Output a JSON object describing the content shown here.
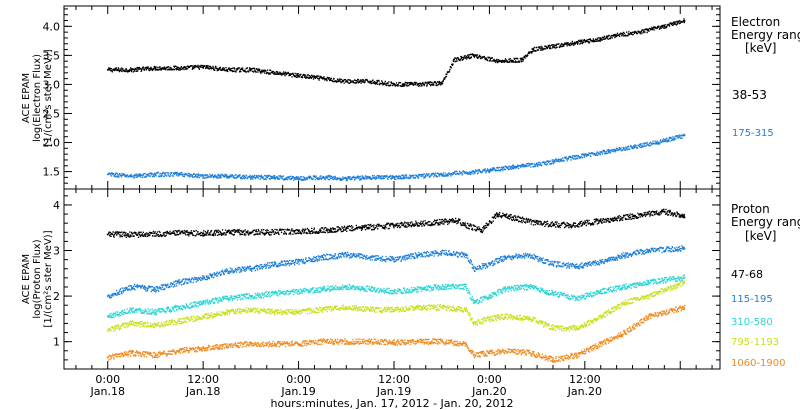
{
  "chart_data": [
    {
      "type": "scatter",
      "panel": "electron",
      "ylabel_lines": [
        "ACE EPAM",
        "log(Electron Flux)",
        "[1/(cm²s ster MeV)]"
      ],
      "ylim": [
        1.2,
        4.35
      ],
      "yticks": [
        1.5,
        2.0,
        2.5,
        3.0,
        3.5,
        4.0
      ],
      "ytick_labels": [
        "1.5",
        "2.0",
        "2.5",
        "3.0",
        "3.5",
        "4.0"
      ],
      "legend_title": [
        "Electron",
        "Energy range",
        "[keV]"
      ],
      "series": [
        {
          "name": "38-53",
          "color": "#000000",
          "x": [
            0,
            3,
            6,
            9,
            12,
            15,
            18,
            21,
            24,
            27,
            30,
            33,
            36,
            39,
            42,
            43.5,
            46,
            49,
            52,
            53.5,
            56,
            59,
            62,
            64,
            67,
            70,
            72.5
          ],
          "values": [
            3.25,
            3.25,
            3.28,
            3.28,
            3.3,
            3.25,
            3.25,
            3.2,
            3.15,
            3.1,
            3.05,
            3.05,
            3.0,
            3.0,
            3.02,
            3.42,
            3.5,
            3.4,
            3.42,
            3.6,
            3.65,
            3.72,
            3.78,
            3.85,
            3.9,
            4.0,
            4.1
          ]
        },
        {
          "name": "175-315",
          "color": "#1e7fd8",
          "x": [
            0,
            3,
            6,
            9,
            12,
            15,
            18,
            21,
            24,
            27,
            30,
            33,
            36,
            39,
            42,
            45,
            48,
            51,
            54,
            57,
            60,
            63,
            66,
            69,
            72.5
          ],
          "values": [
            1.45,
            1.42,
            1.45,
            1.45,
            1.42,
            1.42,
            1.4,
            1.4,
            1.38,
            1.4,
            1.38,
            1.4,
            1.4,
            1.42,
            1.45,
            1.48,
            1.52,
            1.58,
            1.62,
            1.7,
            1.78,
            1.85,
            1.92,
            2.0,
            2.12
          ]
        }
      ]
    },
    {
      "type": "scatter",
      "panel": "proton",
      "ylabel_lines": [
        "ACE EPAM",
        "log(Proton Flux)",
        "[1/(cm²s ster MeV)]"
      ],
      "ylim": [
        0.4,
        4.35
      ],
      "yticks": [
        1,
        2,
        3,
        4
      ],
      "ytick_labels": [
        "1",
        "2",
        "3",
        "4"
      ],
      "legend_title": [
        "Proton",
        "Energy range",
        "[keV]"
      ],
      "series": [
        {
          "name": "47-68",
          "color": "#000000",
          "x": [
            0,
            4,
            8,
            12,
            16,
            20,
            24,
            28,
            30,
            32,
            36,
            40,
            44,
            45,
            47,
            49,
            50,
            54,
            58,
            62,
            66,
            70,
            72.5
          ],
          "values": [
            3.35,
            3.35,
            3.38,
            3.38,
            3.4,
            3.4,
            3.42,
            3.45,
            3.48,
            3.5,
            3.55,
            3.6,
            3.65,
            3.55,
            3.45,
            3.8,
            3.75,
            3.6,
            3.55,
            3.65,
            3.75,
            3.85,
            3.75
          ]
        },
        {
          "name": "115-195",
          "color": "#1e7fd8",
          "x": [
            0,
            3,
            6,
            9,
            12,
            15,
            18,
            21,
            24,
            27,
            30,
            33,
            36,
            39,
            42,
            45,
            46,
            48,
            50,
            53,
            56,
            59,
            62,
            65,
            68,
            72.5
          ],
          "values": [
            2.0,
            2.2,
            2.15,
            2.3,
            2.4,
            2.55,
            2.6,
            2.7,
            2.75,
            2.85,
            2.9,
            2.85,
            2.8,
            2.9,
            2.95,
            2.9,
            2.6,
            2.7,
            2.85,
            2.9,
            2.7,
            2.65,
            2.75,
            2.9,
            3.0,
            3.05
          ]
        },
        {
          "name": "310-580",
          "color": "#2ad4d4",
          "x": [
            0,
            3,
            6,
            9,
            12,
            15,
            18,
            21,
            24,
            27,
            30,
            33,
            36,
            39,
            42,
            45,
            46,
            48,
            50,
            53,
            56,
            59,
            62,
            65,
            68,
            72.5
          ],
          "values": [
            1.55,
            1.7,
            1.65,
            1.75,
            1.85,
            1.95,
            2.0,
            2.05,
            2.1,
            2.15,
            2.2,
            2.15,
            2.1,
            2.15,
            2.2,
            2.2,
            1.85,
            2.0,
            2.15,
            2.2,
            2.05,
            1.95,
            2.1,
            2.2,
            2.3,
            2.4
          ]
        },
        {
          "name": "795-1193",
          "color": "#c8e01e",
          "x": [
            0,
            3,
            6,
            9,
            12,
            15,
            18,
            21,
            24,
            27,
            30,
            33,
            36,
            39,
            42,
            45,
            46,
            48,
            50,
            53,
            56,
            59,
            62,
            65,
            68,
            72.5
          ],
          "values": [
            1.25,
            1.4,
            1.35,
            1.45,
            1.55,
            1.65,
            1.7,
            1.65,
            1.65,
            1.7,
            1.75,
            1.7,
            1.7,
            1.75,
            1.75,
            1.7,
            1.4,
            1.5,
            1.55,
            1.5,
            1.3,
            1.3,
            1.55,
            1.85,
            2.0,
            2.3
          ]
        },
        {
          "name": "1060-1900",
          "color": "#f08a1e",
          "x": [
            0,
            3,
            6,
            9,
            12,
            15,
            18,
            21,
            24,
            27,
            30,
            33,
            36,
            39,
            42,
            45,
            46,
            48,
            50,
            53,
            56,
            59,
            62,
            65,
            68,
            72.5
          ],
          "values": [
            0.65,
            0.75,
            0.7,
            0.8,
            0.85,
            0.9,
            0.95,
            0.95,
            0.95,
            1.0,
            1.0,
            1.0,
            0.98,
            1.0,
            1.0,
            0.95,
            0.7,
            0.75,
            0.8,
            0.75,
            0.6,
            0.7,
            0.95,
            1.2,
            1.55,
            1.75
          ]
        }
      ]
    }
  ],
  "xaxis": {
    "xlim": [
      -5.5,
      77
    ],
    "ticks": [
      {
        "x": 0,
        "time": "0:00",
        "date": "Jan.18"
      },
      {
        "x": 12,
        "time": "12:00",
        "date": "Jan.18"
      },
      {
        "x": 24,
        "time": "0:00",
        "date": "Jan.19"
      },
      {
        "x": 36,
        "time": "12:00",
        "date": "Jan.19"
      },
      {
        "x": 48,
        "time": "0:00",
        "date": "Jan.20"
      },
      {
        "x": 60,
        "time": "12:00",
        "date": "Jan.20"
      }
    ],
    "label": "hours:minutes, Jan. 17, 2012 - Jan. 20, 2012"
  }
}
